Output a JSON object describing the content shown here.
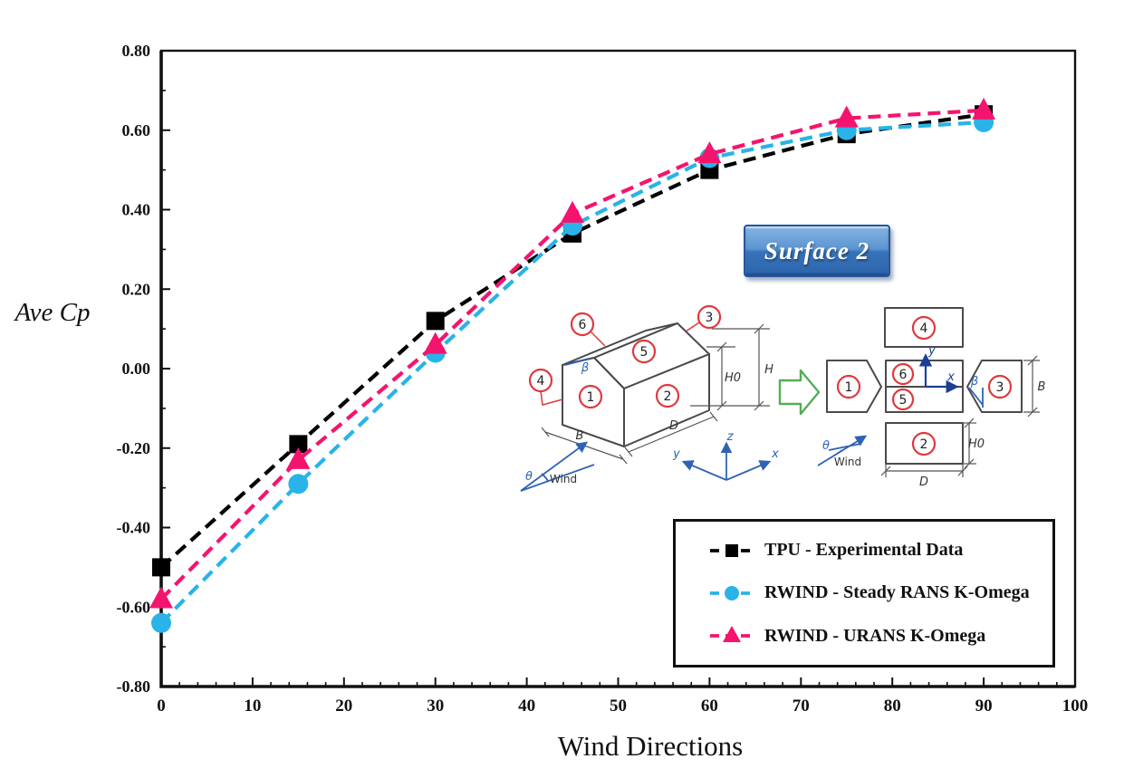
{
  "chart_data": {
    "type": "line",
    "title": "Surface 2",
    "xlabel": "Wind Directions",
    "ylabel": "Ave Cp",
    "x": [
      0,
      15,
      30,
      45,
      60,
      75,
      90
    ],
    "series": [
      {
        "name": "TPU - Experimental Data",
        "color": "#000000",
        "marker": "square",
        "linestyle": "dashed",
        "values": [
          -0.5,
          -0.19,
          0.12,
          0.34,
          0.5,
          0.59,
          0.64
        ]
      },
      {
        "name": "RWIND - Steady RANS K-Omega",
        "color": "#29b3e8",
        "marker": "circle",
        "linestyle": "dashed",
        "values": [
          -0.64,
          -0.29,
          0.04,
          0.36,
          0.53,
          0.6,
          0.62
        ]
      },
      {
        "name": "RWIND - URANS K-Omega",
        "color": "#f4146e",
        "marker": "triangle",
        "linestyle": "dashed",
        "values": [
          -0.58,
          -0.23,
          0.06,
          0.39,
          0.54,
          0.63,
          0.65
        ]
      }
    ],
    "xlim": [
      0,
      100
    ],
    "ylim": [
      -0.8,
      0.8
    ],
    "x_ticks": [
      0,
      10,
      20,
      30,
      40,
      50,
      60,
      70,
      80,
      90,
      100
    ],
    "x_tick_labels": [
      "0",
      "10",
      "20",
      "30",
      "40",
      "50",
      "60",
      "70",
      "80",
      "90",
      "100"
    ],
    "x_minor_step": 2,
    "y_ticks": [
      0.8,
      0.6,
      0.4,
      0.2,
      0.0,
      -0.2,
      -0.4,
      -0.6,
      -0.8
    ],
    "y_tick_labels": [
      "0.80",
      "0.60",
      "0.40",
      "0.20",
      "0.00",
      "-0.20",
      "-0.40",
      "-0.60",
      "-0.80"
    ],
    "y_minor_step": 0.1,
    "grid": false,
    "legend_position": "inside lower right"
  },
  "badge": {
    "label": "Surface 2",
    "bg": "#3673b9"
  },
  "inset": {
    "surfaces": {
      "s1": "1",
      "s2": "2",
      "s3": "3",
      "s4": "4",
      "s5": "5",
      "s6": "6"
    },
    "labels": {
      "H": "H",
      "H0": "H0",
      "D": "D",
      "B": "B",
      "beta": "β",
      "theta": "θ",
      "wind": "Wind",
      "x": "x",
      "y": "y",
      "z": "z"
    }
  }
}
